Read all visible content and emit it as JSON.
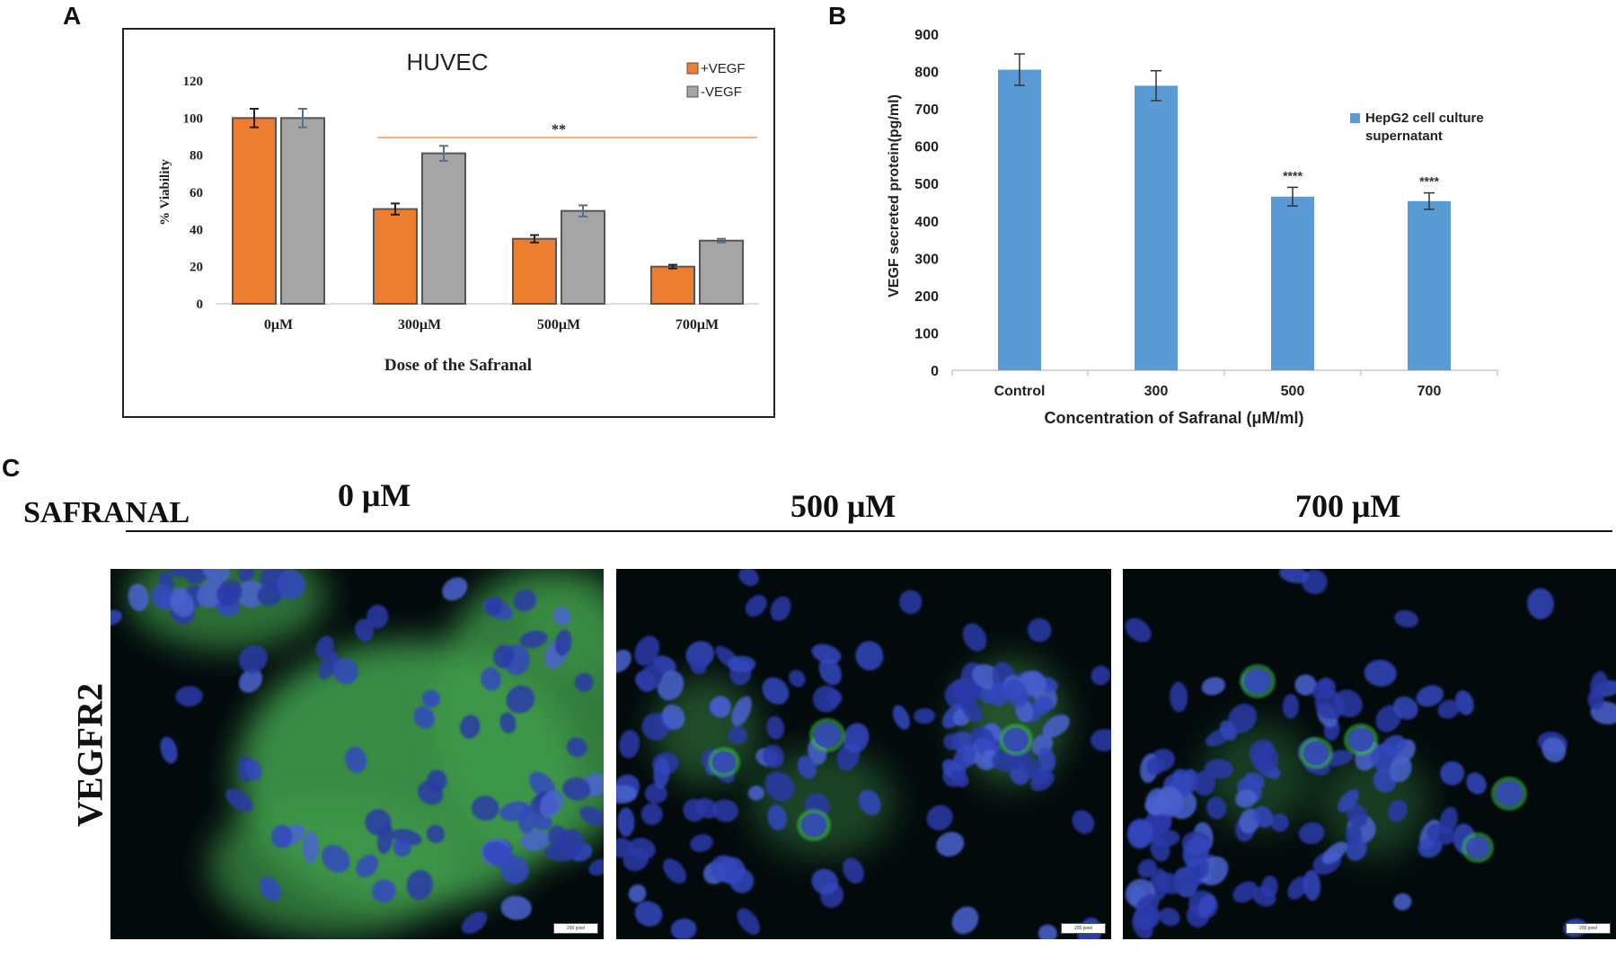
{
  "panels": {
    "a_letter": "A",
    "b_letter": "B",
    "c_letter": "C"
  },
  "colors": {
    "orange": "#ed7d31",
    "gray": "#a5a5a5",
    "blue": "#5b9bd5",
    "sig_line": "#f4b183"
  },
  "chart_data": [
    {
      "type": "bar",
      "title": "HUVEC",
      "categories": [
        "0μM",
        "300μM",
        "500μM",
        "700μM"
      ],
      "series": [
        {
          "name": "+VEGF",
          "values": [
            100,
            51,
            35,
            20
          ],
          "errors": [
            5,
            3,
            2,
            1
          ]
        },
        {
          "name": "-VEGF",
          "values": [
            100,
            81,
            50,
            34
          ],
          "errors": [
            5,
            4,
            3,
            1
          ]
        }
      ],
      "ylabel": "% Viability",
      "xlabel": "Dose of the Safranal",
      "ylim": [
        0,
        120
      ],
      "yticks": [
        0,
        20,
        40,
        60,
        80,
        100,
        120
      ],
      "annotation": "**",
      "legend": "top-right",
      "grid": false
    },
    {
      "type": "bar",
      "categories": [
        "Control",
        "300",
        "500",
        "700"
      ],
      "series": [
        {
          "name": "HepG2 cell culture supernatant",
          "values": [
            805,
            762,
            465,
            453
          ],
          "errors": [
            42,
            40,
            25,
            22
          ]
        }
      ],
      "significance": [
        "",
        "",
        "****",
        "****"
      ],
      "ylabel": "VEGF secreted protein(pg/ml)",
      "xlabel": "Concentration of Safranal (μM/ml)",
      "ylim": [
        0,
        900
      ],
      "yticks": [
        0,
        100,
        200,
        300,
        400,
        500,
        600,
        700,
        800,
        900
      ],
      "legend": "right",
      "grid": false
    }
  ],
  "panel_c": {
    "row_label": "VEGFR2",
    "compound_label": "SAFRANAL",
    "doses": [
      "0 μM",
      "500 μM",
      "700 μM"
    ],
    "scale_bars": [
      "200 pixel",
      "200 pixel",
      "200 pixel"
    ]
  }
}
